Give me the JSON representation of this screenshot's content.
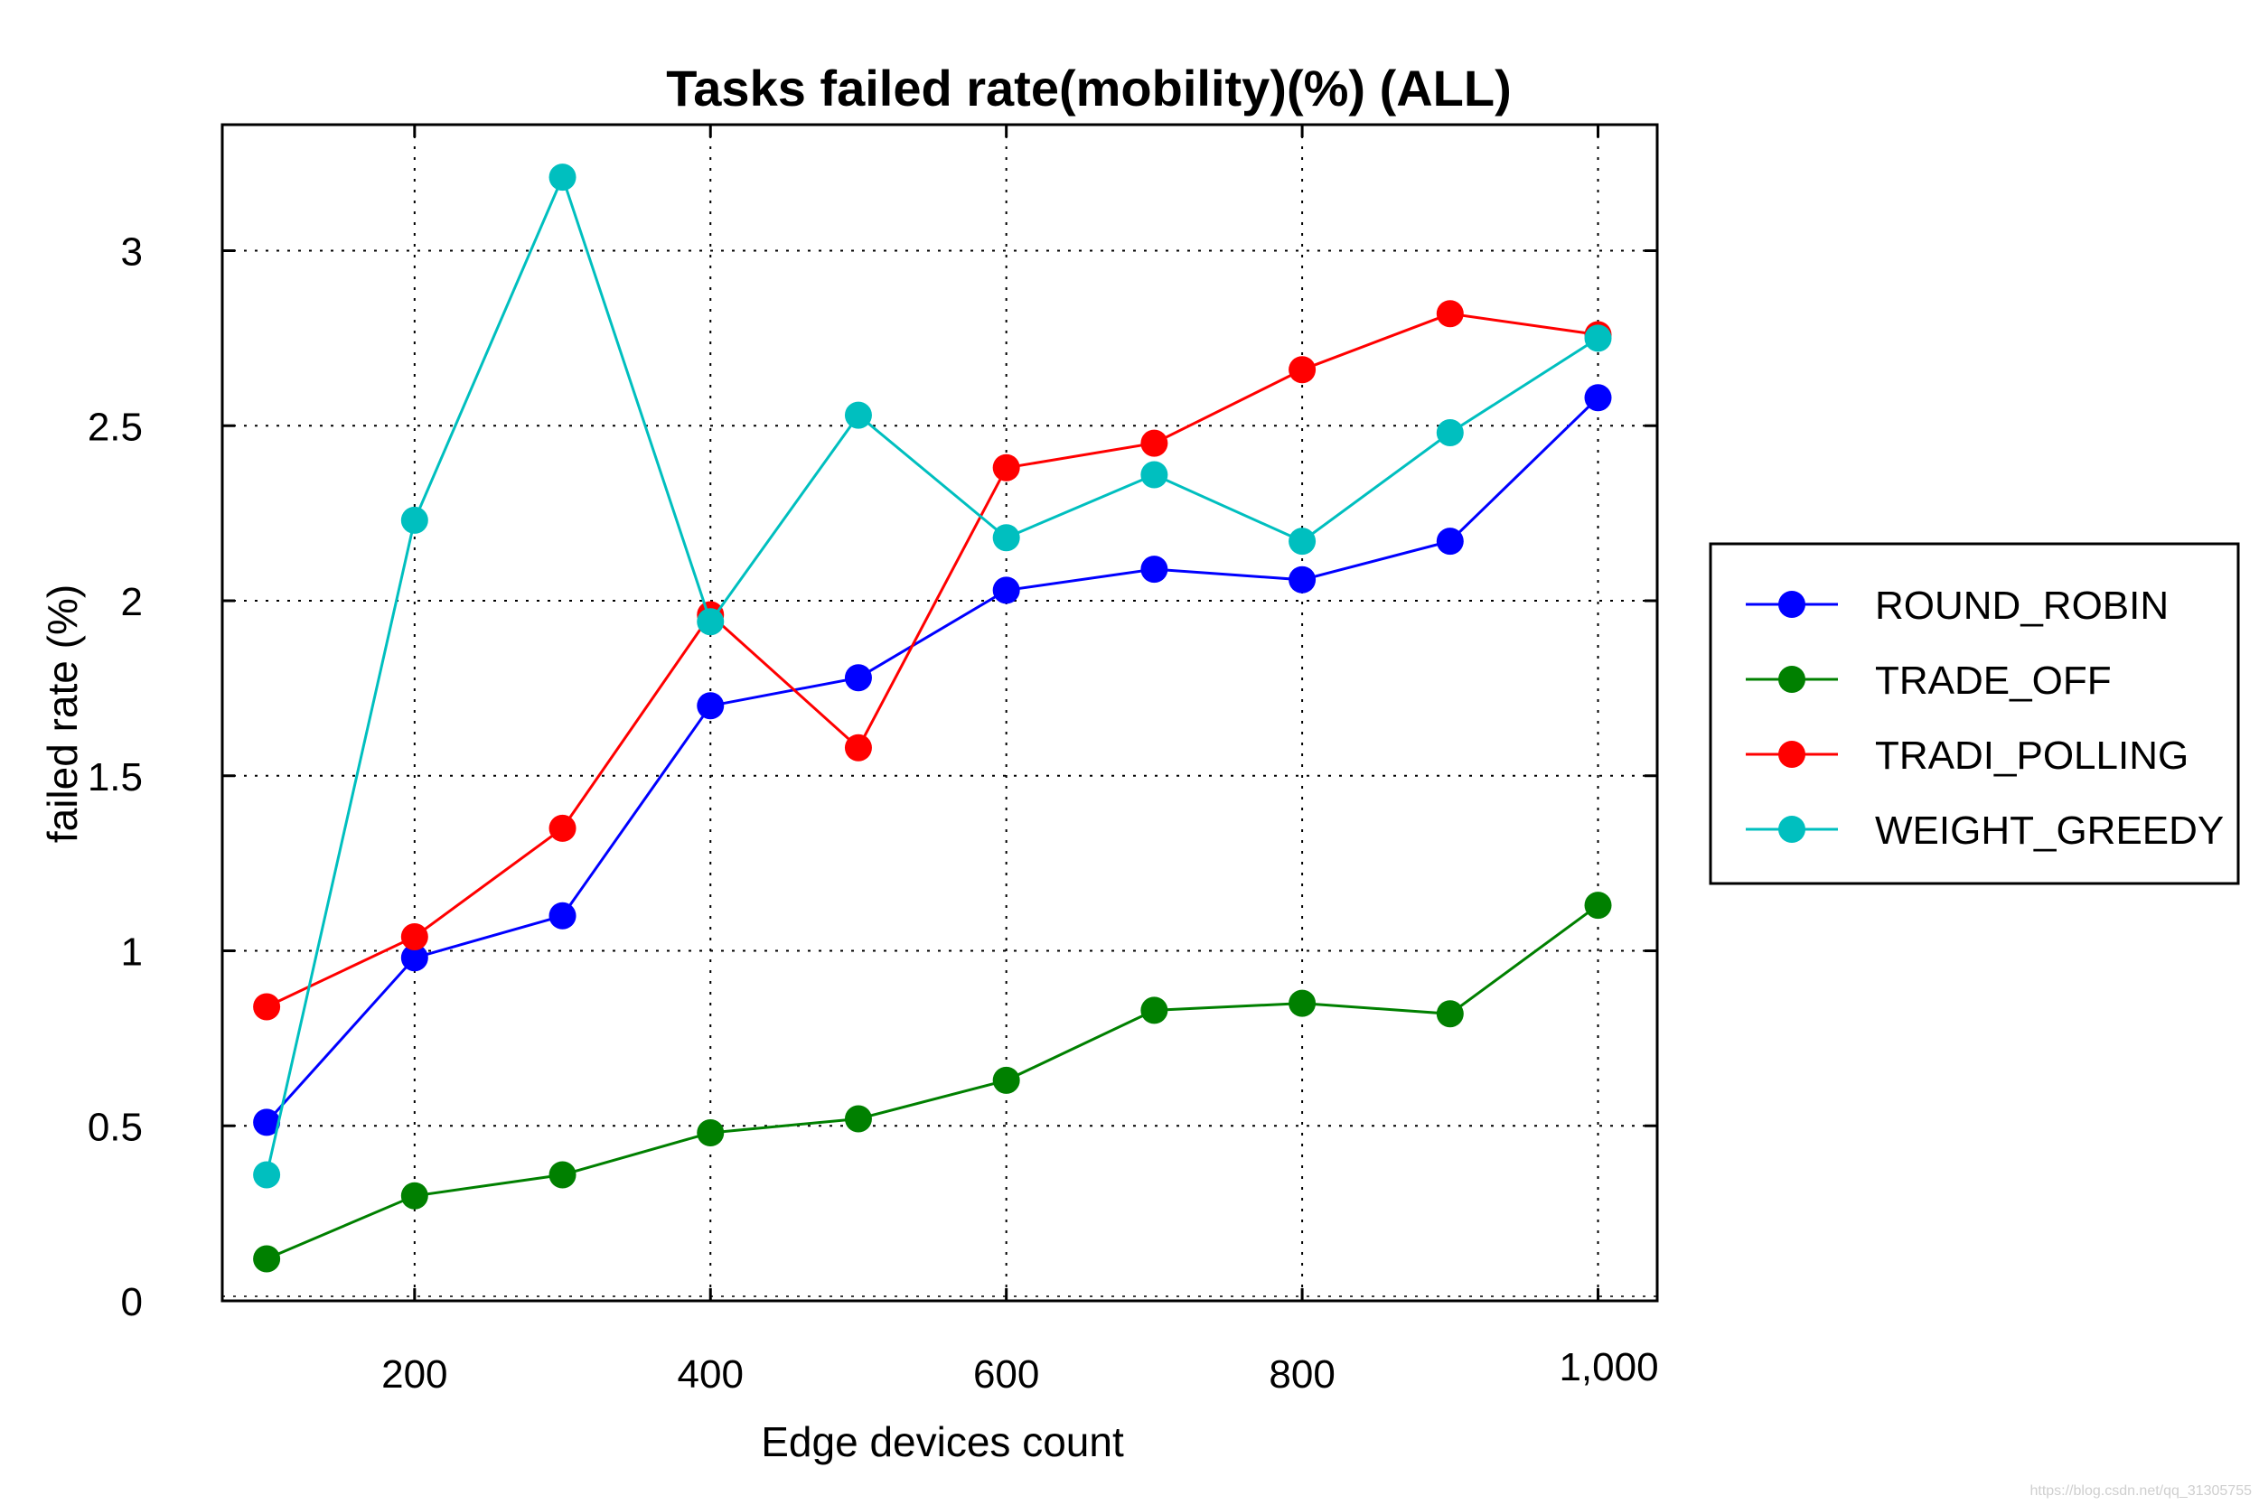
{
  "chart_data": {
    "type": "line",
    "title": "Tasks failed rate(mobility)(%) (ALL)",
    "xlabel": "Edge devices count",
    "ylabel": "failed rate (%)",
    "x": [
      100,
      200,
      300,
      400,
      500,
      600,
      700,
      800,
      900,
      1000
    ],
    "xlim": [
      70,
      1040
    ],
    "ylim": [
      0,
      3.36
    ],
    "xticks": [
      200,
      400,
      600,
      800,
      1000
    ],
    "xtick_labels": [
      "200",
      "400",
      "600",
      "800",
      "1,000"
    ],
    "yticks": [
      0,
      0.5,
      1,
      1.5,
      2,
      2.5,
      3
    ],
    "ytick_labels": [
      "0",
      "0.5",
      "1",
      "1.5",
      "2",
      "2.5",
      "3"
    ],
    "grid": true,
    "legend_position": "outside-right",
    "series": [
      {
        "name": "ROUND_ROBIN",
        "color": "#0000ff",
        "values": [
          0.51,
          0.98,
          1.1,
          1.7,
          1.78,
          2.03,
          2.09,
          2.06,
          2.17,
          2.58
        ]
      },
      {
        "name": "TRADE_OFF",
        "color": "#008000",
        "values": [
          0.12,
          0.3,
          0.36,
          0.48,
          0.52,
          0.63,
          0.83,
          0.85,
          0.82,
          1.13
        ]
      },
      {
        "name": "TRADI_POLLING",
        "color": "#ff0000",
        "values": [
          0.84,
          1.04,
          1.35,
          1.96,
          1.58,
          2.38,
          2.45,
          2.66,
          2.82,
          2.76
        ]
      },
      {
        "name": "WEIGHT_GREEDY",
        "color": "#00bfbf",
        "values": [
          0.36,
          2.23,
          3.21,
          1.94,
          2.53,
          2.18,
          2.36,
          2.17,
          2.48,
          2.75
        ]
      }
    ]
  },
  "watermark": "https://blog.csdn.net/qq_31305755"
}
